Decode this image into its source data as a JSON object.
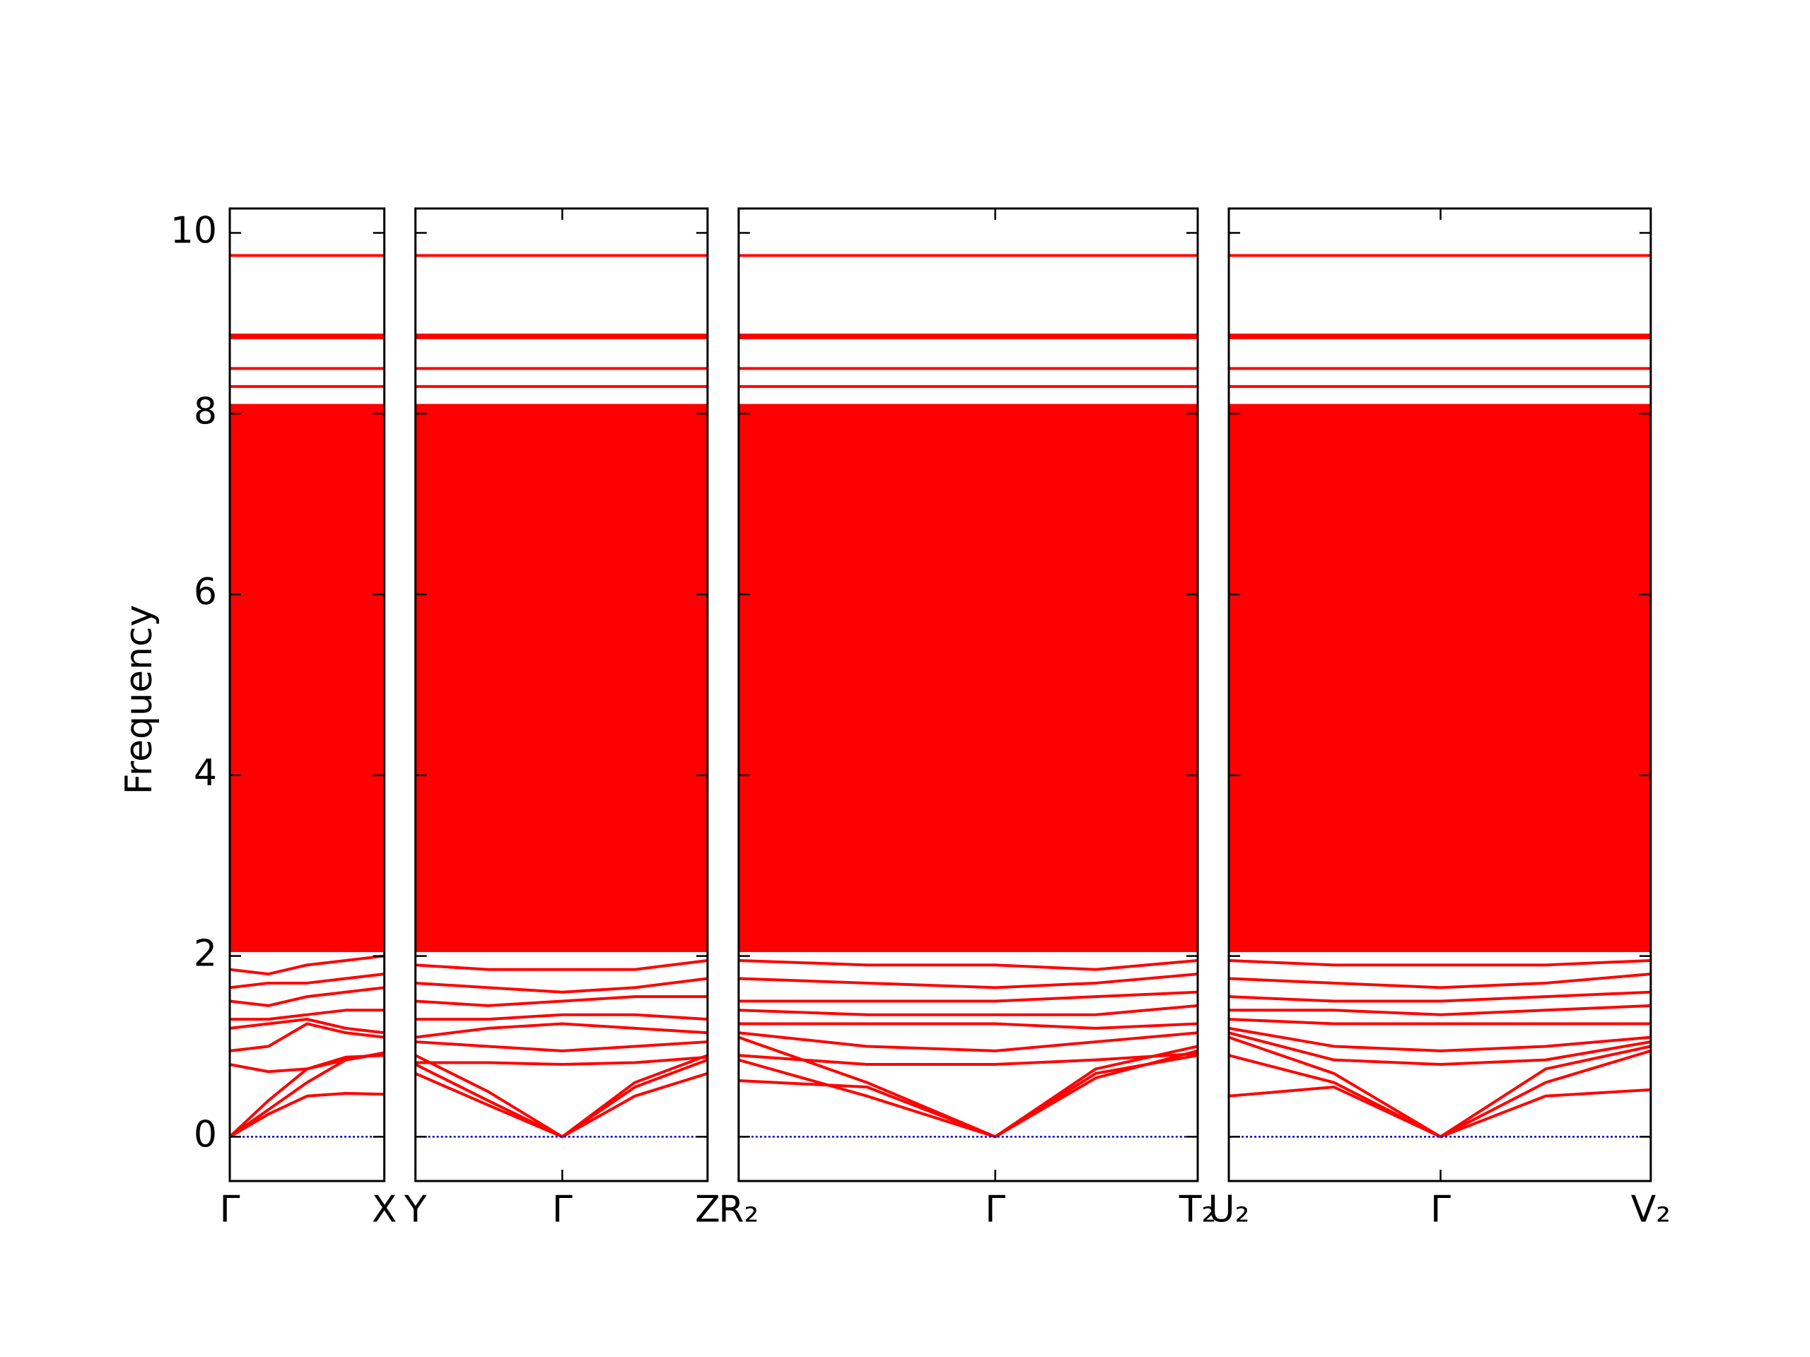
{
  "chart_data": {
    "type": "line",
    "ylabel": "Frequency",
    "ylim": [
      -0.49,
      10.27
    ],
    "yticks": [
      0,
      2,
      4,
      6,
      8,
      10
    ],
    "panels": [
      {
        "xlim": [
          0,
          1
        ],
        "xticks": [
          {
            "value": 0,
            "label": "Γ"
          },
          {
            "value": 1,
            "label": "X"
          }
        ],
        "x": [
          0,
          0.25,
          0.5,
          0.75,
          1
        ],
        "series": [
          {
            "type": "area",
            "color": "#ff0000",
            "values": [
              8.1,
              8.1,
              8.1,
              8.1,
              8.1
            ],
            "lower": [
              2.05,
              2.05,
              2.05,
              2.05,
              2.05
            ]
          },
          {
            "color": "#ff0000",
            "values": [
              0,
              0.25,
              0.45,
              0.48,
              0.47
            ]
          },
          {
            "color": "#ff0000",
            "values": [
              0,
              0.3,
              0.6,
              0.85,
              0.93
            ]
          },
          {
            "color": "#ff0000",
            "values": [
              0,
              0.4,
              0.75,
              0.88,
              0.9
            ]
          },
          {
            "color": "#ff0000",
            "values": [
              0.8,
              0.72,
              0.75,
              0.85,
              0.92
            ]
          },
          {
            "color": "#ff0000",
            "values": [
              0.95,
              1.0,
              1.25,
              1.15,
              1.1
            ]
          },
          {
            "color": "#ff0000",
            "values": [
              1.2,
              1.25,
              1.3,
              1.2,
              1.15
            ]
          },
          {
            "color": "#ff0000",
            "values": [
              1.3,
              1.3,
              1.35,
              1.4,
              1.4
            ]
          },
          {
            "color": "#ff0000",
            "values": [
              1.5,
              1.45,
              1.55,
              1.6,
              1.65
            ]
          },
          {
            "color": "#ff0000",
            "values": [
              1.65,
              1.7,
              1.7,
              1.75,
              1.8
            ]
          },
          {
            "color": "#ff0000",
            "values": [
              1.85,
              1.8,
              1.9,
              1.95,
              2.0
            ]
          },
          {
            "color": "#ff0000",
            "values": [
              8.3,
              8.3,
              8.3,
              8.3,
              8.3
            ]
          },
          {
            "color": "#ff0000",
            "values": [
              8.5,
              8.5,
              8.5,
              8.5,
              8.5
            ]
          },
          {
            "color": "#ff0000",
            "values": [
              8.84,
              8.84,
              8.84,
              8.84,
              8.84
            ]
          },
          {
            "color": "#ff0000",
            "values": [
              8.87,
              8.87,
              8.87,
              8.87,
              8.87
            ]
          },
          {
            "color": "#ff0000",
            "values": [
              9.75,
              9.75,
              9.75,
              9.75,
              9.75
            ]
          },
          {
            "color": "#0000cc",
            "dash": "dotted",
            "values": [
              0,
              0,
              0,
              0,
              0
            ]
          }
        ]
      },
      {
        "xlim": [
          0,
          1.89
        ],
        "xticks": [
          {
            "value": 0,
            "label": "Y"
          },
          {
            "value": 0.95,
            "label": "Γ"
          },
          {
            "value": 1.89,
            "label": "Z"
          }
        ],
        "x": [
          0,
          0.47,
          0.95,
          1.42,
          1.89
        ],
        "series": [
          {
            "type": "area",
            "color": "#ff0000",
            "values": [
              8.1,
              8.1,
              8.1,
              8.1,
              8.1
            ],
            "lower": [
              2.05,
              2.05,
              2.05,
              2.05,
              2.05
            ]
          },
          {
            "color": "#ff0000",
            "values": [
              0.7,
              0.35,
              0,
              0.45,
              0.7
            ]
          },
          {
            "color": "#ff0000",
            "values": [
              0.8,
              0.4,
              0,
              0.55,
              0.85
            ]
          },
          {
            "color": "#ff0000",
            "values": [
              0.9,
              0.5,
              0,
              0.6,
              0.9
            ]
          },
          {
            "color": "#ff0000",
            "values": [
              0.82,
              0.82,
              0.8,
              0.82,
              0.88
            ]
          },
          {
            "color": "#ff0000",
            "values": [
              1.05,
              1.0,
              0.95,
              1.0,
              1.05
            ]
          },
          {
            "color": "#ff0000",
            "values": [
              1.1,
              1.2,
              1.25,
              1.2,
              1.15
            ]
          },
          {
            "color": "#ff0000",
            "values": [
              1.3,
              1.3,
              1.35,
              1.35,
              1.3
            ]
          },
          {
            "color": "#ff0000",
            "values": [
              1.5,
              1.45,
              1.5,
              1.55,
              1.55
            ]
          },
          {
            "color": "#ff0000",
            "values": [
              1.7,
              1.65,
              1.6,
              1.65,
              1.75
            ]
          },
          {
            "color": "#ff0000",
            "values": [
              1.9,
              1.85,
              1.85,
              1.85,
              1.95
            ]
          },
          {
            "color": "#ff0000",
            "values": [
              8.3,
              8.3,
              8.3,
              8.3,
              8.3
            ]
          },
          {
            "color": "#ff0000",
            "values": [
              8.5,
              8.5,
              8.5,
              8.5,
              8.5
            ]
          },
          {
            "color": "#ff0000",
            "values": [
              8.84,
              8.84,
              8.84,
              8.84,
              8.84
            ]
          },
          {
            "color": "#ff0000",
            "values": [
              8.87,
              8.87,
              8.87,
              8.87,
              8.87
            ]
          },
          {
            "color": "#ff0000",
            "values": [
              9.75,
              9.75,
              9.75,
              9.75,
              9.75
            ]
          },
          {
            "color": "#0000cc",
            "dash": "dotted",
            "values": [
              0,
              0,
              0,
              0,
              0
            ]
          }
        ]
      },
      {
        "xlim": [
          0,
          2.97
        ],
        "xticks": [
          {
            "value": 0,
            "label": "R₂"
          },
          {
            "value": 1.66,
            "label": "Γ"
          },
          {
            "value": 2.97,
            "label": "T₂"
          }
        ],
        "x": [
          0,
          0.83,
          1.66,
          2.31,
          2.97
        ],
        "series": [
          {
            "type": "area",
            "color": "#ff0000",
            "values": [
              8.1,
              8.1,
              8.1,
              8.1,
              8.1
            ],
            "lower": [
              2.05,
              2.05,
              2.05,
              2.05,
              2.05
            ]
          },
          {
            "color": "#ff0000",
            "values": [
              0.62,
              0.55,
              0,
              0.7,
              0.9
            ]
          },
          {
            "color": "#ff0000",
            "values": [
              0.85,
              0.45,
              0,
              0.65,
              0.95
            ]
          },
          {
            "color": "#ff0000",
            "values": [
              1.1,
              0.6,
              0,
              0.75,
              1.0
            ]
          },
          {
            "color": "#ff0000",
            "values": [
              0.9,
              0.8,
              0.8,
              0.85,
              0.92
            ]
          },
          {
            "color": "#ff0000",
            "values": [
              1.15,
              1.0,
              0.95,
              1.05,
              1.15
            ]
          },
          {
            "color": "#ff0000",
            "values": [
              1.25,
              1.25,
              1.25,
              1.2,
              1.25
            ]
          },
          {
            "color": "#ff0000",
            "values": [
              1.4,
              1.35,
              1.35,
              1.35,
              1.45
            ]
          },
          {
            "color": "#ff0000",
            "values": [
              1.5,
              1.5,
              1.5,
              1.55,
              1.6
            ]
          },
          {
            "color": "#ff0000",
            "values": [
              1.75,
              1.7,
              1.65,
              1.7,
              1.8
            ]
          },
          {
            "color": "#ff0000",
            "values": [
              1.95,
              1.9,
              1.9,
              1.85,
              1.95
            ]
          },
          {
            "color": "#ff0000",
            "values": [
              8.3,
              8.3,
              8.3,
              8.3,
              8.3
            ]
          },
          {
            "color": "#ff0000",
            "values": [
              8.5,
              8.5,
              8.5,
              8.5,
              8.5
            ]
          },
          {
            "color": "#ff0000",
            "values": [
              8.84,
              8.84,
              8.84,
              8.84,
              8.84
            ]
          },
          {
            "color": "#ff0000",
            "values": [
              8.87,
              8.87,
              8.87,
              8.87,
              8.87
            ]
          },
          {
            "color": "#ff0000",
            "values": [
              9.75,
              9.75,
              9.75,
              9.75,
              9.75
            ]
          },
          {
            "color": "#0000cc",
            "dash": "dotted",
            "values": [
              0,
              0,
              0,
              0,
              0
            ]
          }
        ]
      },
      {
        "xlim": [
          0,
          2.73
        ],
        "xticks": [
          {
            "value": 0,
            "label": "U₂"
          },
          {
            "value": 1.37,
            "label": "Γ"
          },
          {
            "value": 2.73,
            "label": "V₂"
          }
        ],
        "x": [
          0,
          0.68,
          1.37,
          2.05,
          2.73
        ],
        "series": [
          {
            "type": "area",
            "color": "#ff0000",
            "values": [
              8.1,
              8.1,
              8.1,
              8.1,
              8.1
            ],
            "lower": [
              2.05,
              2.05,
              2.05,
              2.05,
              2.05
            ]
          },
          {
            "color": "#ff0000",
            "values": [
              0.45,
              0.55,
              0,
              0.45,
              0.52
            ]
          },
          {
            "color": "#ff0000",
            "values": [
              0.9,
              0.6,
              0,
              0.6,
              0.95
            ]
          },
          {
            "color": "#ff0000",
            "values": [
              1.1,
              0.7,
              0,
              0.75,
              1.0
            ]
          },
          {
            "color": "#ff0000",
            "values": [
              1.15,
              0.85,
              0.8,
              0.85,
              1.05
            ]
          },
          {
            "color": "#ff0000",
            "values": [
              1.2,
              1.0,
              0.95,
              1.0,
              1.1
            ]
          },
          {
            "color": "#ff0000",
            "values": [
              1.3,
              1.25,
              1.25,
              1.25,
              1.25
            ]
          },
          {
            "color": "#ff0000",
            "values": [
              1.4,
              1.4,
              1.35,
              1.4,
              1.45
            ]
          },
          {
            "color": "#ff0000",
            "values": [
              1.55,
              1.5,
              1.5,
              1.55,
              1.6
            ]
          },
          {
            "color": "#ff0000",
            "values": [
              1.75,
              1.7,
              1.65,
              1.7,
              1.8
            ]
          },
          {
            "color": "#ff0000",
            "values": [
              1.95,
              1.9,
              1.9,
              1.9,
              1.95
            ]
          },
          {
            "color": "#ff0000",
            "values": [
              8.3,
              8.3,
              8.3,
              8.3,
              8.3
            ]
          },
          {
            "color": "#ff0000",
            "values": [
              8.5,
              8.5,
              8.5,
              8.5,
              8.5
            ]
          },
          {
            "color": "#ff0000",
            "values": [
              8.84,
              8.84,
              8.84,
              8.84,
              8.84
            ]
          },
          {
            "color": "#ff0000",
            "values": [
              8.87,
              8.87,
              8.87,
              8.87,
              8.87
            ]
          },
          {
            "color": "#ff0000",
            "values": [
              9.75,
              9.75,
              9.75,
              9.75,
              9.75
            ]
          },
          {
            "color": "#0000cc",
            "dash": "dotted",
            "values": [
              0,
              0,
              0,
              0,
              0
            ]
          }
        ]
      }
    ]
  }
}
